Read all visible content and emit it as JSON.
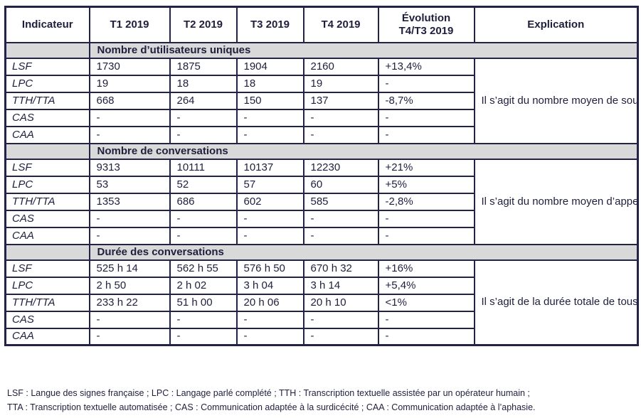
{
  "table": {
    "header": {
      "indicator": "Indicateur",
      "q1": "T1 2019",
      "q2": "T2 2019",
      "q3": "T3 2019",
      "q4": "T4 2019",
      "evolution_line1": "Évolution",
      "evolution_line2": "T4/T3 2019",
      "explanation": "Explication"
    },
    "sections": [
      {
        "title": "Nombre d’utilisateurs uniques",
        "explanation": "Il s’agit du nombre moyen de souscripteurs ayant utilisé le service au cours d’un mois, c’est-à-dire ceux ayant émis ou reçu un appel.",
        "rows": [
          {
            "label": "LSF",
            "values": [
              "1730",
              "1875",
              "1904",
              "2160"
            ],
            "evolution": "+13,4%"
          },
          {
            "label": "LPC",
            "values": [
              "19",
              "18",
              "18",
              "19"
            ],
            "evolution": "-"
          },
          {
            "label": "TTH/TTA",
            "values": [
              "668",
              "264",
              "150",
              "137"
            ],
            "evolution": "-8,7%"
          },
          {
            "label": "CAS",
            "values": [
              "-",
              "-",
              "-",
              "-"
            ],
            "evolution": "-"
          },
          {
            "label": "CAA",
            "values": [
              "-",
              "-",
              "-",
              "-"
            ],
            "evolution": "-"
          }
        ]
      },
      {
        "title": "Nombre de conversations",
        "explanation": "Il s’agit du nombre moyen d’appels émis ou reçus par l’ensemble des utilisateurs au cours d’un mois.",
        "rows": [
          {
            "label": "LSF",
            "values": [
              "9313",
              "10111",
              "10137",
              "12230"
            ],
            "evolution": "+21%"
          },
          {
            "label": "LPC",
            "values": [
              "53",
              "52",
              "57",
              "60"
            ],
            "evolution": "+5%"
          },
          {
            "label": "TTH/TTA",
            "values": [
              "1353",
              "686",
              "602",
              "585"
            ],
            "evolution": "-2,8%"
          },
          {
            "label": "CAS",
            "values": [
              "-",
              "-",
              "-",
              "-"
            ],
            "evolution": "-"
          },
          {
            "label": "CAA",
            "values": [
              "-",
              "-",
              "-",
              "-"
            ],
            "evolution": "-"
          }
        ]
      },
      {
        "title": "Durée des conversations",
        "explanation": "Il s’agit de la durée totale de tous les appels émis ou reçus au cours d’un mois.",
        "rows": [
          {
            "label": "LSF",
            "values": [
              "525 h 14",
              "562 h 55",
              "576 h 50",
              "670 h 32"
            ],
            "evolution": "+16%"
          },
          {
            "label": "LPC",
            "values": [
              "2 h 50",
              "2 h 02",
              "3 h 04",
              "3 h 14"
            ],
            "evolution": "+5,4%"
          },
          {
            "label": "TTH/TTA",
            "values": [
              "233 h 22",
              "51 h 00",
              "20 h 06",
              "20 h 10"
            ],
            "evolution": "<1%"
          },
          {
            "label": "CAS",
            "values": [
              "-",
              "-",
              "-",
              "-"
            ],
            "evolution": "-"
          },
          {
            "label": "CAA",
            "values": [
              "-",
              "-",
              "-",
              "-"
            ],
            "evolution": "-"
          }
        ]
      }
    ]
  },
  "footnote": {
    "line1": "LSF : Langue des signes française ; LPC : Langage parlé complété ; TTH : Transcription textuelle assistée par un opérateur humain ;",
    "line2": "TTA : Transcription textuelle automatisée ; CAS : Communication adaptée à la surdicécité ; CAA : Communication adaptée à l’aphasie."
  },
  "colors": {
    "border": "#232347",
    "text": "#1f1f3d",
    "section_bg": "#d9d9d9"
  }
}
